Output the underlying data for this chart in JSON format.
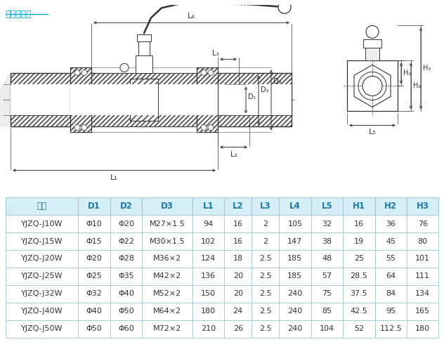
{
  "title": "外螺纹连接",
  "title_color": "#00aacc",
  "header": [
    "型号",
    "D1",
    "D2",
    "D3",
    "L1",
    "L2",
    "L3",
    "L4",
    "L5",
    "H1",
    "H2",
    "H3"
  ],
  "rows": [
    [
      "YJZQ-J10W",
      "Φ10",
      "Φ20",
      "M27×1.5",
      "94",
      "16",
      "2",
      "105",
      "32",
      "16",
      "36",
      "76"
    ],
    [
      "YJZQ-J15W",
      "Φ15",
      "Φ22",
      "M30×1.5",
      "102",
      "16",
      "2",
      "147",
      "38",
      "19",
      "45",
      "80"
    ],
    [
      "YJZQ-J20W",
      "Φ20",
      "Φ28",
      "M36×2",
      "124",
      "18",
      "2.5",
      "185",
      "48",
      "25",
      "55",
      "101"
    ],
    [
      "YJZQ-J25W",
      "Φ25",
      "Φ35",
      "M42×2",
      "136",
      "20",
      "2.5",
      "185",
      "57",
      "28.5",
      "64",
      "111"
    ],
    [
      "YJZQ-J32W",
      "Φ32",
      "Φ40",
      "M52×2",
      "150",
      "20",
      "2.5",
      "240",
      "75",
      "37.5",
      "84",
      "134"
    ],
    [
      "YJZQ-J40W",
      "Φ40",
      "Φ50",
      "M64×2",
      "180",
      "24",
      "2.5",
      "240",
      "85",
      "42.5",
      "95",
      "165"
    ],
    [
      "YJZQ-J50W",
      "Φ50",
      "Φ60",
      "M72×2",
      "210",
      "26",
      "2.5",
      "240",
      "104",
      "52",
      "112.5",
      "180"
    ]
  ],
  "header_bg": "#d6eef5",
  "header_text_color": "#1a7aaa",
  "border_color": "#a0c8d8",
  "text_color": "#333333",
  "figure_bg": "#ffffff",
  "col_widths_rel": [
    1.6,
    0.7,
    0.7,
    1.1,
    0.7,
    0.6,
    0.6,
    0.7,
    0.7,
    0.7,
    0.7,
    0.7
  ]
}
